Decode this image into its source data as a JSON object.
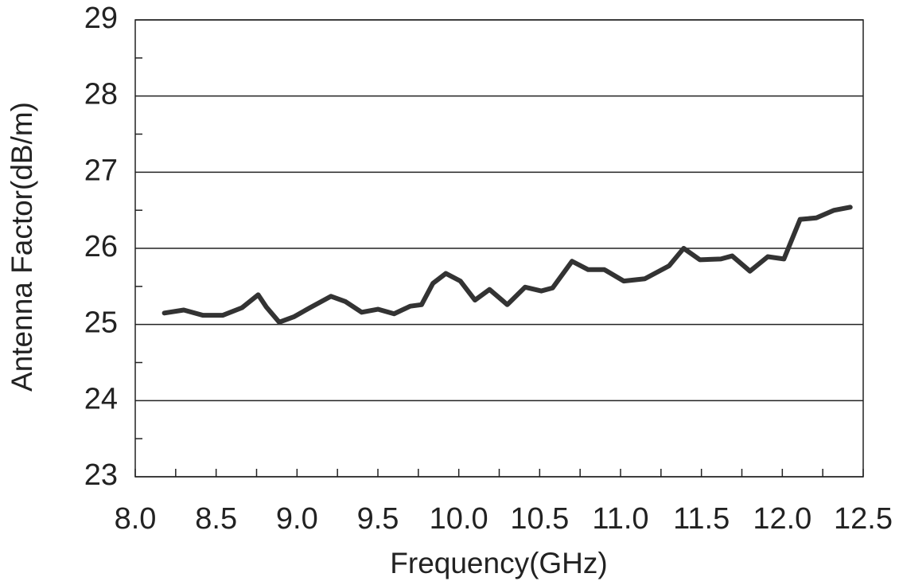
{
  "chart_data": {
    "type": "line",
    "xlabel": "Frequency(GHz)",
    "ylabel": "Antenna Factor(dB/m)",
    "xlim": [
      8.0,
      12.5
    ],
    "ylim": [
      23,
      29
    ],
    "xticks": [
      {
        "value": 8.0,
        "label": "8.0"
      },
      8.5,
      {
        "value": 9.0,
        "label": "9.0"
      },
      9.5,
      {
        "value": 10.0,
        "label": "10.0"
      },
      10.5,
      {
        "value": 11.0,
        "label": "11.0"
      },
      11.5,
      {
        "value": 12.0,
        "label": "12.0"
      },
      12.5
    ],
    "xminorticks": [
      8.25,
      8.75,
      9.25,
      9.75,
      10.25,
      10.75,
      11.25,
      11.75,
      12.25
    ],
    "yticks": [
      23,
      24,
      25,
      26,
      27,
      28,
      29
    ],
    "yminorticks": [
      23.5,
      24.5,
      25.5,
      26.5,
      27.5,
      28.5
    ],
    "grid": true,
    "series": [
      {
        "color": "#333333",
        "x": [
          8.18,
          8.3,
          8.42,
          8.54,
          8.66,
          8.76,
          8.81,
          8.89,
          8.98,
          9.08,
          9.21,
          9.3,
          9.4,
          9.5,
          9.6,
          9.7,
          9.77,
          9.84,
          9.92,
          10.01,
          10.1,
          10.19,
          10.3,
          10.41,
          10.51,
          10.58,
          10.7,
          10.8,
          10.9,
          11.02,
          11.15,
          11.3,
          11.39,
          11.49,
          11.62,
          11.69,
          11.8,
          11.91,
          12.01,
          12.11,
          12.21,
          12.32,
          12.42
        ],
        "values": [
          25.15,
          25.19,
          25.12,
          25.12,
          25.22,
          25.39,
          25.23,
          25.03,
          25.1,
          25.22,
          25.37,
          25.3,
          25.16,
          25.2,
          25.14,
          25.24,
          25.26,
          25.54,
          25.67,
          25.57,
          25.32,
          25.46,
          25.26,
          25.49,
          25.44,
          25.48,
          25.83,
          25.72,
          25.72,
          25.57,
          25.6,
          25.77,
          26.0,
          25.85,
          25.86,
          25.9,
          25.7,
          25.89,
          25.86,
          26.38,
          26.4,
          26.5,
          26.54
        ]
      }
    ]
  }
}
